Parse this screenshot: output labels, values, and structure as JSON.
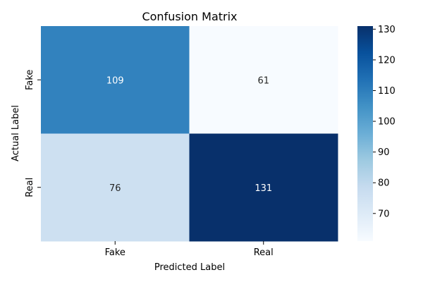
{
  "chart_data": {
    "type": "heatmap",
    "title": "Confusion Matrix",
    "xlabel": "Predicted Label",
    "ylabel": "Actual Label",
    "x_categories": [
      "Fake",
      "Real"
    ],
    "y_categories": [
      "Fake",
      "Real"
    ],
    "values": [
      [
        109,
        61
      ],
      [
        76,
        131
      ]
    ],
    "colormap": "Blues",
    "color_range": [
      61,
      131
    ],
    "colorbar_ticks": [
      70,
      80,
      90,
      100,
      110,
      120,
      130
    ],
    "annotations": true
  }
}
